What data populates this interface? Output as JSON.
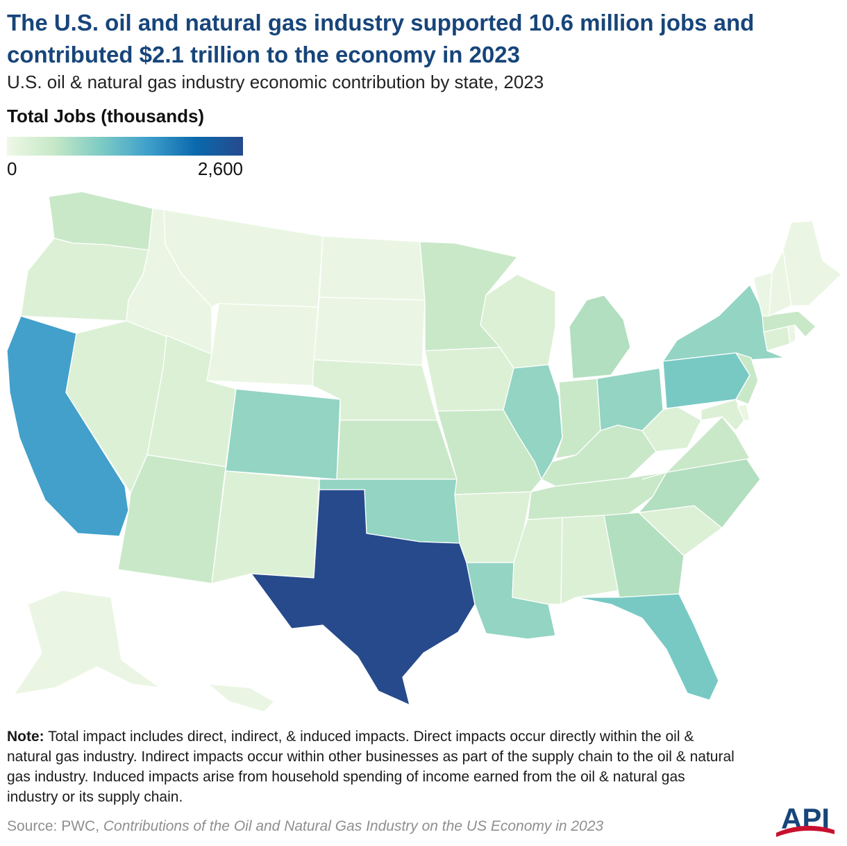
{
  "header": {
    "title": "The U.S. oil and natural gas industry supported 10.6 million jobs and contributed $2.1 trillion to the economy in 2023",
    "subtitle": "U.S. oil & natural gas industry economic contribution by state, 2023"
  },
  "legend": {
    "title": "Total Jobs (thousands)",
    "min_label": "0",
    "max_label": "2,600",
    "min": 0,
    "max": 2600,
    "colors": [
      "#eef8e6",
      "#c6e8c7",
      "#7ccbc4",
      "#3e9fcb",
      "#0a69ad",
      "#264a8c"
    ]
  },
  "map": {
    "shade_scale": {
      "v1": "#eaf6e3",
      "v2": "#dcf0d6",
      "v3": "#c9e8c8",
      "v4": "#b2dfbf",
      "v5": "#93d4c3",
      "v6": "#78c9c4",
      "v7": "#42a0cb",
      "v8": "#264a8c"
    },
    "states": [
      {
        "name": "Washington",
        "shade": "v3"
      },
      {
        "name": "Oregon",
        "shade": "v2"
      },
      {
        "name": "California",
        "shade": "v7"
      },
      {
        "name": "Nevada",
        "shade": "v2"
      },
      {
        "name": "Idaho",
        "shade": "v1"
      },
      {
        "name": "Montana",
        "shade": "v1"
      },
      {
        "name": "Wyoming",
        "shade": "v1"
      },
      {
        "name": "Utah",
        "shade": "v2"
      },
      {
        "name": "Arizona",
        "shade": "v3"
      },
      {
        "name": "Colorado",
        "shade": "v5"
      },
      {
        "name": "New Mexico",
        "shade": "v2"
      },
      {
        "name": "North Dakota",
        "shade": "v1"
      },
      {
        "name": "South Dakota",
        "shade": "v1"
      },
      {
        "name": "Nebraska",
        "shade": "v2"
      },
      {
        "name": "Kansas",
        "shade": "v3"
      },
      {
        "name": "Oklahoma",
        "shade": "v5"
      },
      {
        "name": "Texas",
        "shade": "v8"
      },
      {
        "name": "Minnesota",
        "shade": "v3"
      },
      {
        "name": "Iowa",
        "shade": "v2"
      },
      {
        "name": "Missouri",
        "shade": "v3"
      },
      {
        "name": "Arkansas",
        "shade": "v2"
      },
      {
        "name": "Louisiana",
        "shade": "v5"
      },
      {
        "name": "Wisconsin",
        "shade": "v2"
      },
      {
        "name": "Illinois",
        "shade": "v5"
      },
      {
        "name": "Michigan",
        "shade": "v4"
      },
      {
        "name": "Indiana",
        "shade": "v3"
      },
      {
        "name": "Ohio",
        "shade": "v5"
      },
      {
        "name": "Kentucky",
        "shade": "v3"
      },
      {
        "name": "Tennessee",
        "shade": "v3"
      },
      {
        "name": "Mississippi",
        "shade": "v2"
      },
      {
        "name": "Alabama",
        "shade": "v2"
      },
      {
        "name": "Georgia",
        "shade": "v4"
      },
      {
        "name": "Florida",
        "shade": "v6"
      },
      {
        "name": "South Carolina",
        "shade": "v2"
      },
      {
        "name": "North Carolina",
        "shade": "v4"
      },
      {
        "name": "Virginia",
        "shade": "v3"
      },
      {
        "name": "West Virginia",
        "shade": "v2"
      },
      {
        "name": "Pennsylvania",
        "shade": "v6"
      },
      {
        "name": "New York",
        "shade": "v5"
      },
      {
        "name": "New Jersey",
        "shade": "v3"
      },
      {
        "name": "Maryland",
        "shade": "v2"
      },
      {
        "name": "Delaware",
        "shade": "v1"
      },
      {
        "name": "Connecticut",
        "shade": "v2"
      },
      {
        "name": "Rhode Island",
        "shade": "v1"
      },
      {
        "name": "Massachusetts",
        "shade": "v3"
      },
      {
        "name": "Vermont",
        "shade": "v1"
      },
      {
        "name": "New Hampshire",
        "shade": "v1"
      },
      {
        "name": "Maine",
        "shade": "v1"
      },
      {
        "name": "Alaska",
        "shade": "v1"
      },
      {
        "name": "Hawaii",
        "shade": "v1"
      }
    ]
  },
  "note": {
    "label": "Note:",
    "text": " Total impact includes direct, indirect, & induced impacts. Direct impacts occur directly within the oil & natural gas industry. Indirect impacts occur within other businesses as part of the supply chain to the oil & natural gas industry. Induced impacts arise from household spending of income earned from the oil & natural gas industry or its supply chain."
  },
  "source": {
    "prefix": "Source: PWC, ",
    "title": "Contributions of the Oil and Natural Gas Industry on the US Economy in 2023"
  },
  "logo": {
    "text": "API",
    "colors": {
      "primary": "#17457a",
      "accent": "#c8102e"
    }
  }
}
